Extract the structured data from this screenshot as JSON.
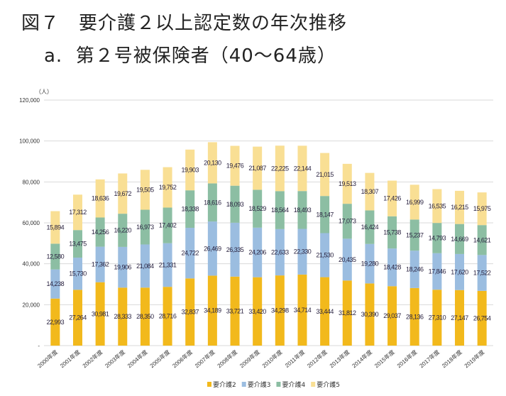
{
  "title_line1": "図７　要介護２以上認定数の年次推移",
  "title_line2": "a.  第２号被保険者（40〜64歳）",
  "chart_data": {
    "type": "bar",
    "stacked": true,
    "ylabel": "（人）",
    "ylim": [
      0,
      120000
    ],
    "yticks": [
      0,
      20000,
      40000,
      60000,
      80000,
      100000,
      120000
    ],
    "ytick_labels": [
      "-",
      "20,000",
      "40,000",
      "60,000",
      "80,000",
      "100,000",
      "120,000"
    ],
    "grid": true,
    "legend_position": "bottom",
    "categories": [
      "2000年度",
      "2001年度",
      "2002年度",
      "2003年度",
      "2004年度",
      "2005年度",
      "2006年度",
      "2007年度",
      "2008年度",
      "2009年度",
      "2010年度",
      "2011年度",
      "2012年度",
      "2013年度",
      "2014年度",
      "2015年度",
      "2016年度",
      "2017年度",
      "2018年度",
      "2019年度"
    ],
    "series": [
      {
        "name": "要介護2",
        "color": "#F2B91C",
        "values": [
          22993,
          27264,
          30981,
          28333,
          28350,
          28716,
          32837,
          34189,
          33721,
          33420,
          34298,
          34714,
          33444,
          31812,
          30390,
          29037,
          28136,
          27310,
          27147,
          26754
        ]
      },
      {
        "name": "要介護3",
        "color": "#9BBDE0",
        "values": [
          14238,
          15730,
          17362,
          19906,
          21084,
          21331,
          24722,
          26469,
          26335,
          24206,
          22633,
          22330,
          21530,
          20435,
          19280,
          18428,
          18246,
          17846,
          17620,
          17522
        ]
      },
      {
        "name": "要介護4",
        "color": "#8CBEA3",
        "values": [
          12580,
          13475,
          14256,
          16220,
          16973,
          17402,
          18338,
          18616,
          18093,
          18529,
          18564,
          18493,
          18147,
          17073,
          16424,
          15738,
          15237,
          14793,
          14669,
          14621
        ]
      },
      {
        "name": "要介護5",
        "color": "#F9DF94",
        "values": [
          15894,
          17312,
          18636,
          19672,
          19505,
          19752,
          19903,
          20130,
          19476,
          21087,
          22225,
          22144,
          21015,
          19513,
          18307,
          17426,
          16999,
          16535,
          16215,
          15975
        ]
      }
    ]
  }
}
